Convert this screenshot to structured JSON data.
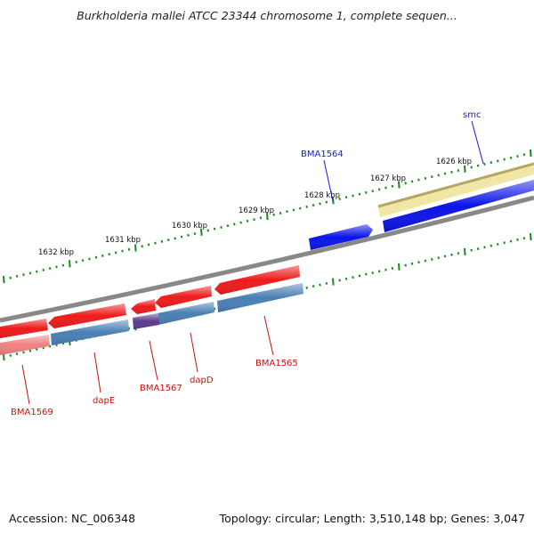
{
  "title": "Burkholderia mallei ATCC 23344 chromosome 1, complete sequen...",
  "footer": {
    "accession": "Accession: NC_006348",
    "summary": "Topology: circular; Length: 3,510,148 bp; Genes: 3,047"
  },
  "colors": {
    "forward_cds": "#0b14e6",
    "forward_gene": "#f0e6a6",
    "reverse_cds": "#ee1b1b",
    "reverse_gene": "#4a7fb4",
    "overlap": "#5b3b8c",
    "backbone": "#888888",
    "tick": "#1a8a1a",
    "label_forward": "#1a1ad0",
    "label_reverse": "#cc1010"
  },
  "scale": {
    "ticks": [
      {
        "label": "1626 kbp"
      },
      {
        "label": "1627 kbp"
      },
      {
        "label": "1628 kbp"
      },
      {
        "label": "1629 kbp"
      },
      {
        "label": "1630 kbp"
      },
      {
        "label": "1631 kbp"
      },
      {
        "label": "1632 kbp"
      }
    ]
  },
  "genes": [
    {
      "label": "smc",
      "strand": "forward"
    },
    {
      "label": "BMA1564",
      "strand": "forward"
    },
    {
      "label": "BMA1565",
      "strand": "reverse"
    },
    {
      "label": "dapD",
      "strand": "reverse"
    },
    {
      "label": "BMA1567",
      "strand": "reverse"
    },
    {
      "label": "dapE",
      "strand": "reverse"
    },
    {
      "label": "BMA1569",
      "strand": "reverse"
    }
  ]
}
